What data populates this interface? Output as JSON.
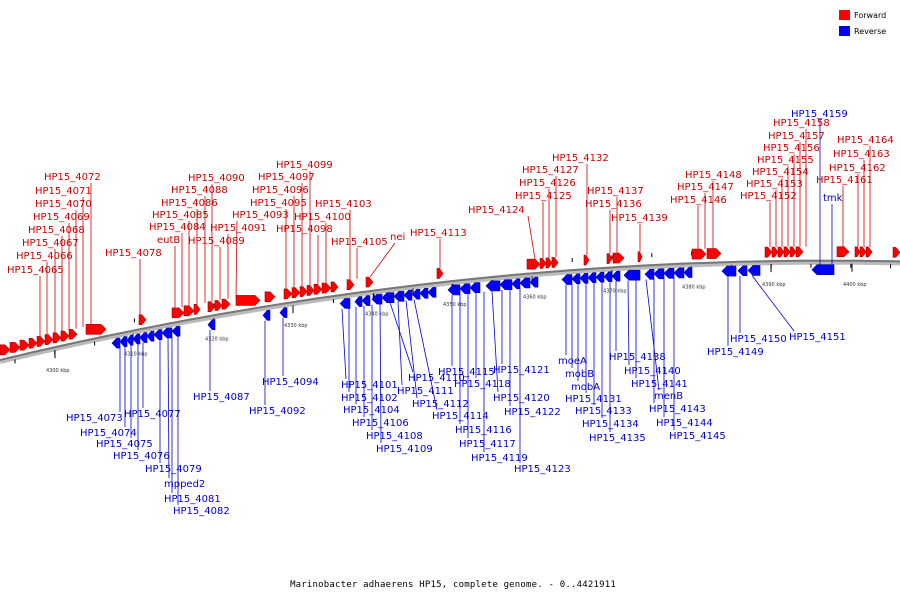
{
  "caption": "Marinobacter adhaerens HP15, complete genome. - 0..4421911",
  "legend": [
    {
      "label": "Forward",
      "color": "#ff0000"
    },
    {
      "label": "Reverse",
      "color": "#0000ff"
    }
  ],
  "colors": {
    "forward": "#ff0000",
    "reverse": "#0000ff",
    "forward_text": "#cc0000",
    "reverse_text": "#0000cc",
    "axis": "#777777"
  },
  "ticks": [
    "4300 kbp",
    "4310 kbp",
    "4320 kbp",
    "4330 kbp",
    "4340 kbp",
    "4350 kbp",
    "4360 kbp",
    "4370 kbp",
    "4380 kbp",
    "4390 kbp",
    "4400 kbp"
  ],
  "forward_labels": [
    "HP15_4065",
    "HP15_4066",
    "HP15_4067",
    "HP15_4068",
    "HP15_4069",
    "HP15_4070",
    "HP15_4071",
    "HP15_4072",
    "HP15_4078",
    "eutB",
    "HP15_4084",
    "HP15_4085",
    "HP15_4086",
    "HP15_4088",
    "HP15_4090",
    "HP15_4089",
    "HP15_4091",
    "HP15_4093",
    "HP15_4095",
    "HP15_4096",
    "HP15_4097",
    "HP15_4099",
    "HP15_4098",
    "HP15_4100",
    "HP15_4103",
    "HP15_4105",
    "nei",
    "HP15_4113",
    "HP15_4124",
    "HP15_4125",
    "HP15_4126",
    "HP15_4127",
    "HP15_4132",
    "HP15_4136",
    "HP15_4137",
    "HP15_4139",
    "HP15_4146",
    "HP15_4147",
    "HP15_4148",
    "HP15_4152",
    "HP15_4153",
    "HP15_4154",
    "HP15_4155",
    "HP15_4156",
    "HP15_4157",
    "HP15_4158",
    "HP15_4161",
    "HP15_4162",
    "HP15_4163",
    "HP15_4164"
  ],
  "reverse_labels": [
    "HP15_4073",
    "HP15_4074",
    "HP15_4075",
    "HP15_4076",
    "HP15_4077",
    "HP15_4079",
    "mpped2",
    "HP15_4081",
    "HP15_4082",
    "HP15_4087",
    "HP15_4092",
    "HP15_4094",
    "HP15_4101",
    "HP15_4102",
    "HP15_4104",
    "HP15_4106",
    "HP15_4108",
    "HP15_4109",
    "HP15_4110",
    "HP15_4111",
    "HP15_4112",
    "HP15_4114",
    "HP15_4115",
    "HP15_4116",
    "HP15_4117",
    "HP15_4118",
    "HP15_4119",
    "HP15_4120",
    "HP15_4121",
    "HP15_4122",
    "HP15_4123",
    "moeA",
    "mobB",
    "mobA",
    "HP15_4131",
    "HP15_4133",
    "HP15_4134",
    "HP15_4135",
    "HP15_4138",
    "HP15_4140",
    "HP15_4141",
    "menB",
    "HP15_4143",
    "HP15_4144",
    "HP15_4145",
    "HP15_4149",
    "HP15_4150",
    "HP15_4151",
    "tmk",
    "HP15_4159"
  ]
}
